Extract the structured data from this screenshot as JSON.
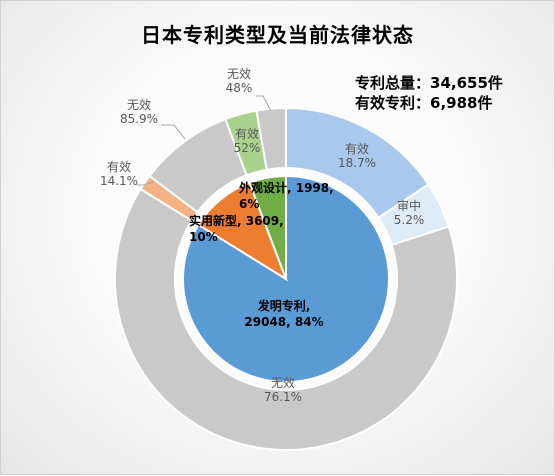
{
  "title": "日本专利类型及当前法律状态",
  "summary": {
    "total_label": "专利总量：",
    "total_value": "34,655件",
    "valid_label": "有效专利：",
    "valid_value": "6,988件"
  },
  "colors": {
    "invention": "#5b9bd5",
    "utility": "#ed7d31",
    "design": "#70ad47",
    "invention_valid": "#a8c8ec",
    "invention_pending": "#ddebf7",
    "invalid": "#c9c9c9",
    "utility_valid": "#f4b183",
    "design_valid": "#a9d18e",
    "text_gray": "#595959"
  },
  "chart_data": {
    "type": "pie",
    "title": "日本专利类型及当前法律状态",
    "inner": [
      {
        "name": "发明专利",
        "value": 29048,
        "percent": "84%",
        "label_lines": [
          "发明专利,",
          "29048, 84%"
        ],
        "color_key": "invention"
      },
      {
        "name": "实用新型",
        "value": 3609,
        "percent": "10%",
        "label_lines": [
          "实用新型, 3609,",
          "10%"
        ],
        "color_key": "utility"
      },
      {
        "name": "外观设计",
        "value": 1998,
        "percent": "6%",
        "label_lines": [
          "外观设计, 1998,",
          "6%"
        ],
        "color_key": "design"
      }
    ],
    "outer": [
      {
        "parent": "发明专利",
        "status": "有效",
        "percent": 18.7,
        "label_lines": [
          "有效",
          "18.7%"
        ],
        "color_key": "invention_valid"
      },
      {
        "parent": "发明专利",
        "status": "审中",
        "percent": 5.2,
        "label_lines": [
          "审中",
          "5.2%"
        ],
        "color_key": "invention_pending"
      },
      {
        "parent": "发明专利",
        "status": "无效",
        "percent": 76.1,
        "label_lines": [
          "无效",
          "76.1%"
        ],
        "color_key": "invalid"
      },
      {
        "parent": "实用新型",
        "status": "有效",
        "percent": 14.1,
        "label_lines": [
          "有效",
          "14.1%"
        ],
        "color_key": "utility_valid"
      },
      {
        "parent": "实用新型",
        "status": "无效",
        "percent": 85.9,
        "label_lines": [
          "无效",
          "85.9%"
        ],
        "color_key": "invalid"
      },
      {
        "parent": "外观设计",
        "status": "有效",
        "percent": 52,
        "label_lines": [
          "有效",
          "52%"
        ],
        "color_key": "design_valid"
      },
      {
        "parent": "外观设计",
        "status": "无效",
        "percent": 48,
        "label_lines": [
          "无效",
          "48%"
        ],
        "color_key": "invalid"
      }
    ]
  }
}
